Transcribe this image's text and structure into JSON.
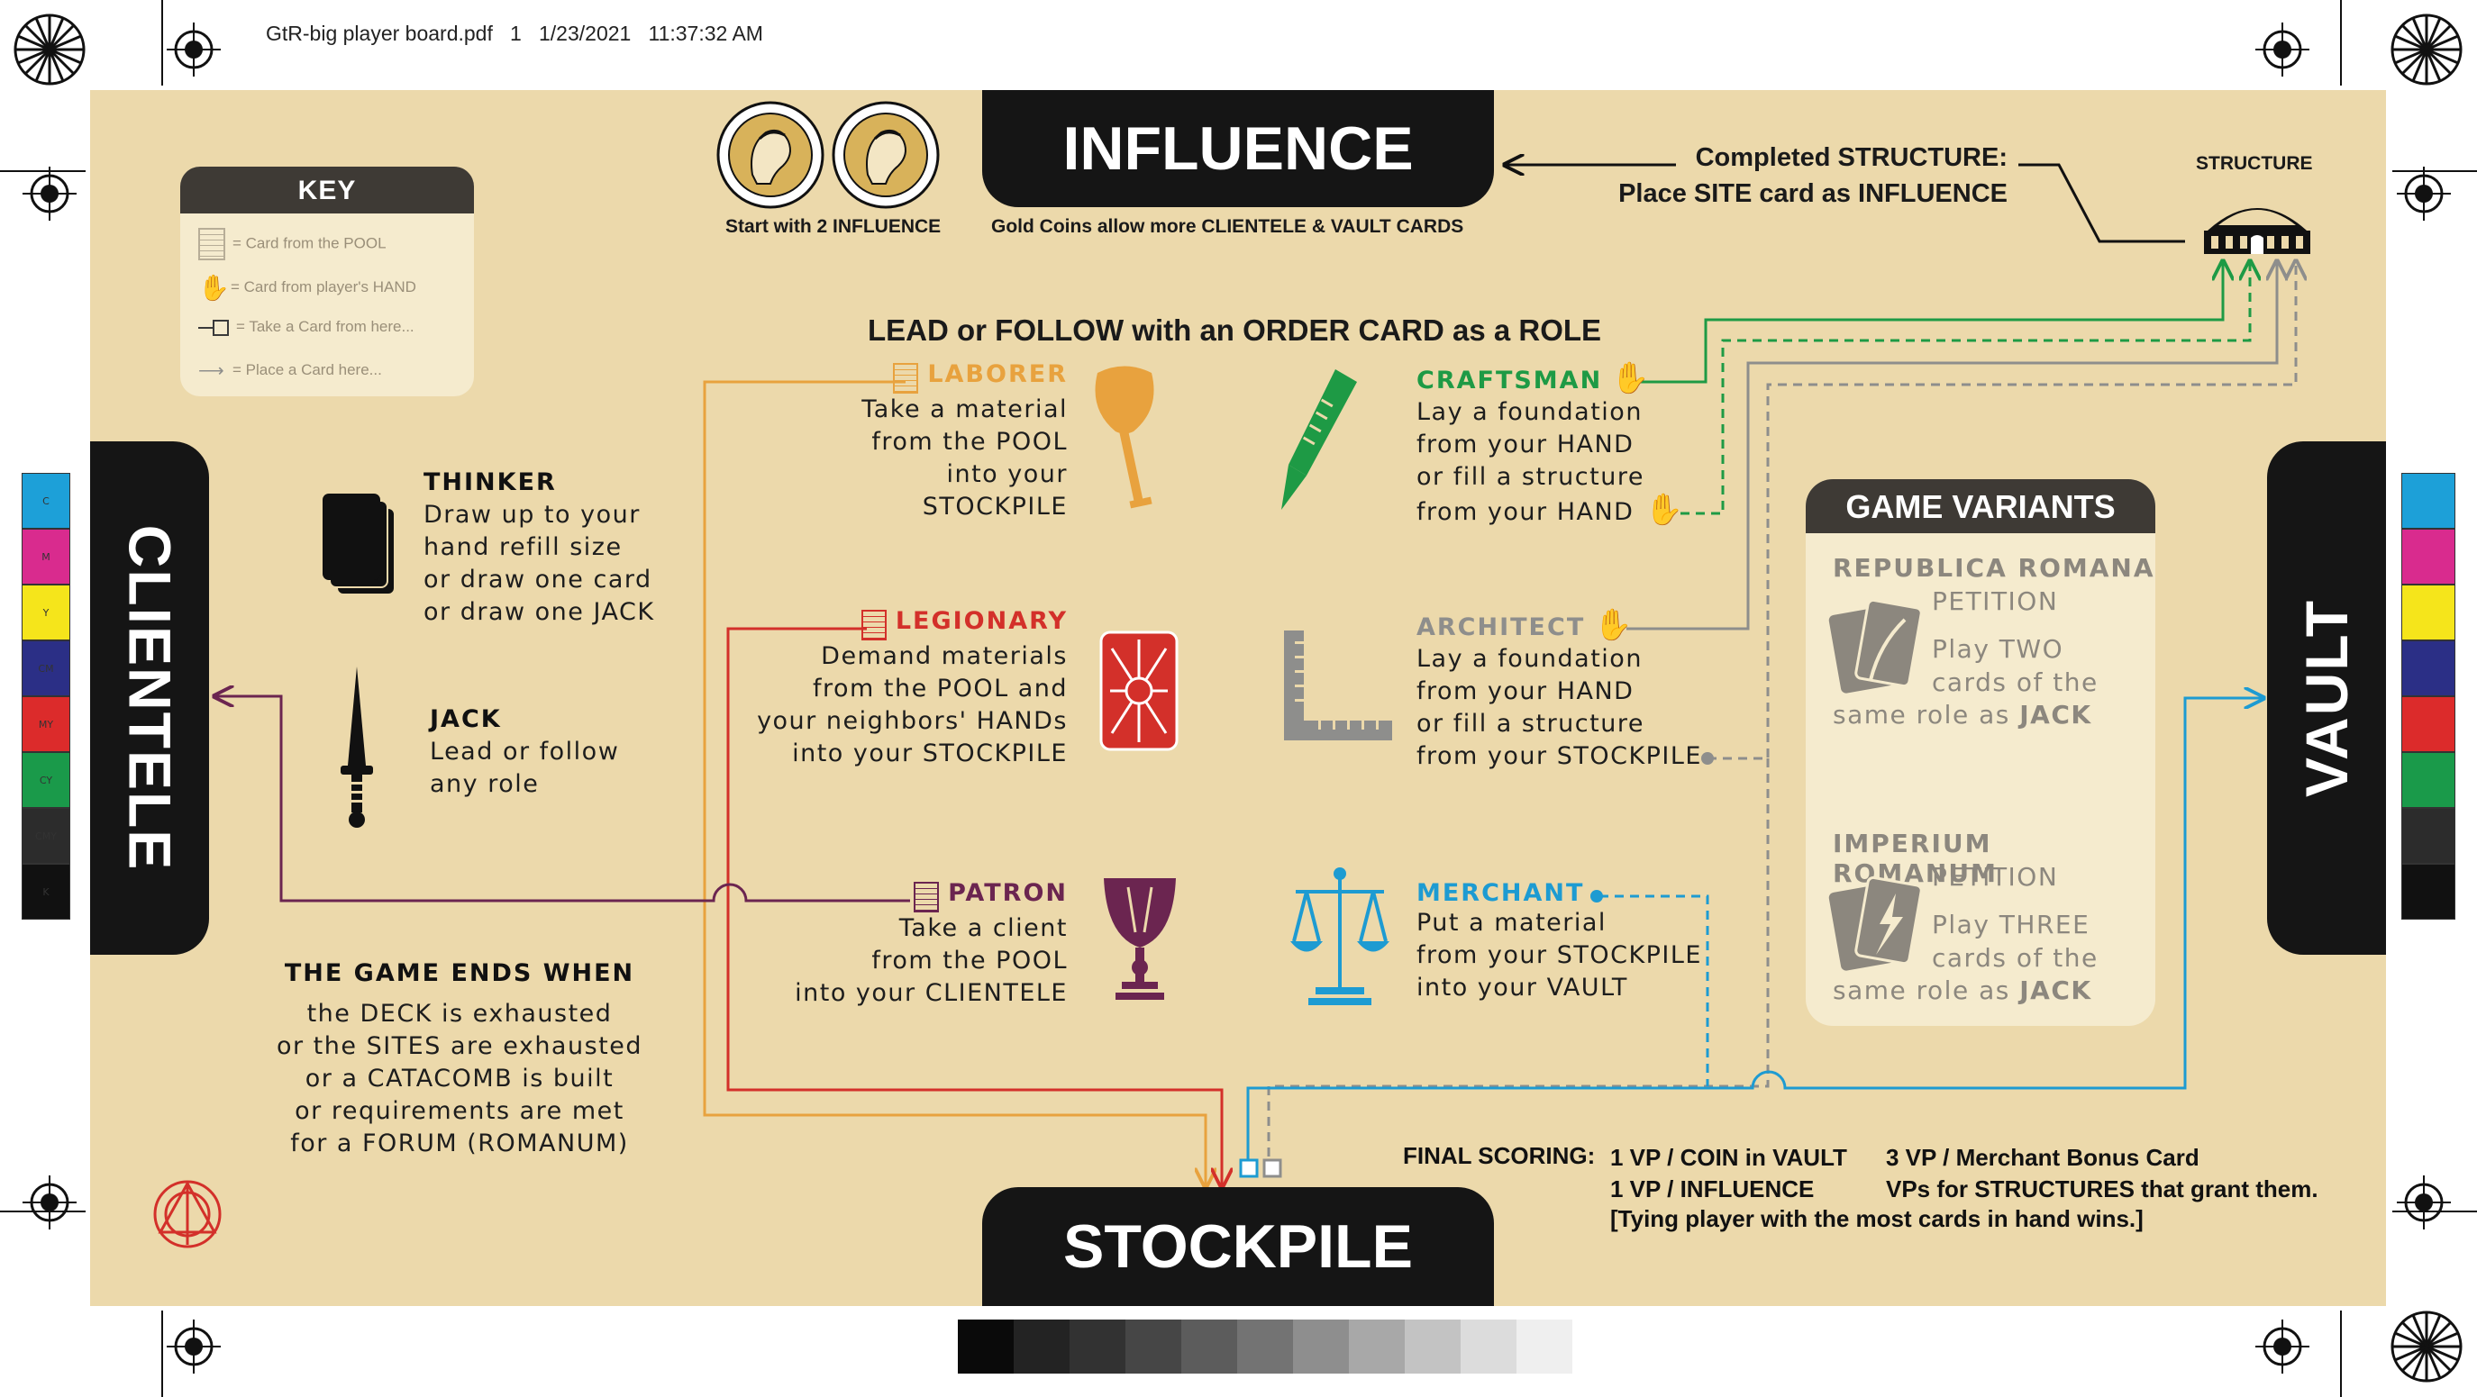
{
  "header": {
    "file": "GtR-big player board.pdf",
    "page": "1",
    "date": "1/23/2021",
    "time": "11:37:32 AM"
  },
  "tabs": {
    "influence": "INFLUENCE",
    "stockpile": "STOCKPILE",
    "clientele": "CLIENTELE",
    "vault": "VAULT"
  },
  "influence": {
    "start_text": "Start with 2 INFLUENCE",
    "gold_text": "Gold Coins allow more CLIENTELE & VAULT CARDS",
    "completed_line1": "Completed STRUCTURE:",
    "completed_line2": "Place SITE card as INFLUENCE",
    "structure_label": "STRUCTURE"
  },
  "key": {
    "title": "KEY",
    "rows": [
      {
        "icon": "card-stack-icon",
        "label": "= Card from the POOL"
      },
      {
        "icon": "hand-icon",
        "label": "= Card from player's HAND"
      },
      {
        "icon": "take-card-icon",
        "label": "= Take a Card from here..."
      },
      {
        "icon": "place-card-arrow-icon",
        "label": "= Place a Card here..."
      }
    ]
  },
  "roles_title": "LEAD or FOLLOW with an ORDER CARD as a ROLE",
  "roles": {
    "thinker": {
      "name": "THINKER",
      "lines": [
        "Draw up to your",
        "hand refill size",
        "or draw one card",
        "or draw one JACK"
      ]
    },
    "jack": {
      "name": "JACK",
      "lines": [
        "Lead or follow",
        "any role"
      ]
    },
    "laborer": {
      "name": "LABORER",
      "color": "#e8a23e",
      "lines": [
        "Take a material",
        "from the POOL",
        "into your STOCKPILE"
      ]
    },
    "legionary": {
      "name": "LEGIONARY",
      "color": "#d3302a",
      "lines": [
        "Demand materials",
        "from the POOL and",
        "your neighbors' HANDs",
        "into your STOCKPILE"
      ]
    },
    "patron": {
      "name": "PATRON",
      "color": "#6b2550",
      "lines": [
        "Take a client",
        "from the POOL",
        "into your CLIENTELE"
      ]
    },
    "craftsman": {
      "name": "CRAFTSMAN",
      "color": "#1e9a45",
      "lines": [
        "Lay a foundation",
        "from your HAND",
        "or fill a structure",
        "from your HAND"
      ]
    },
    "architect": {
      "name": "ARCHITECT",
      "color": "#8e8e8c",
      "lines": [
        "Lay a foundation",
        "from your HAND",
        "or fill a structure",
        "from your STOCKPILE"
      ]
    },
    "merchant": {
      "name": "MERCHANT",
      "color": "#1d9bd2",
      "lines": [
        "Put a material",
        "from your STOCKPILE",
        "into your VAULT"
      ]
    }
  },
  "game_end": {
    "title": "THE GAME ENDS WHEN",
    "lines": [
      "the DECK is exhausted",
      "or the SITES are exhausted",
      "or a CATACOMB is built",
      "or requirements are met",
      "for a FORUM (ROMANUM)"
    ]
  },
  "variants": {
    "title": "GAME VARIANTS",
    "republica": {
      "name": "REPUBLICA ROMANA",
      "sub": "PETITION",
      "lines": [
        "Play TWO",
        "cards of the"
      ],
      "last_prefix": "same role as ",
      "last_bold": "JACK"
    },
    "imperium": {
      "name": "IMPERIUM ROMANUM",
      "sub": "PETITION",
      "lines": [
        "Play THREE",
        "cards of the"
      ],
      "last_prefix": "same role as ",
      "last_bold": "JACK"
    }
  },
  "scoring": {
    "label": "FINAL SCORING:",
    "col1": [
      "1 VP / COIN in VAULT",
      "1 VP / INFLUENCE"
    ],
    "col2": [
      "3 VP / Merchant Bonus Card",
      "VPs for STRUCTURES that grant them."
    ],
    "tie": "[Tying player with the most cards in hand wins.]"
  },
  "colorbar_labels": [
    "C",
    "M",
    "Y",
    "CM",
    "MY",
    "CY",
    "CMY",
    "K"
  ],
  "colors": {
    "board": "#ecd9ab",
    "dark": "#151515",
    "laborer": "#e8a23e",
    "legionary": "#d3302a",
    "patron": "#6b2550",
    "craftsman": "#1e9a45",
    "architect": "#8e8e8c",
    "merchant": "#1d9bd2",
    "coin": "#d8b25a"
  }
}
